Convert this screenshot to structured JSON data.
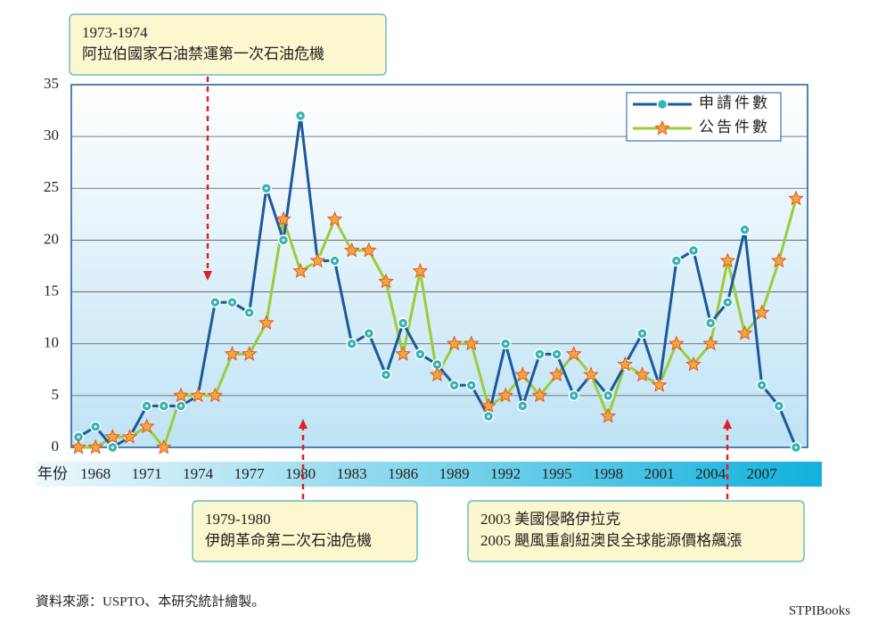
{
  "chart_data": {
    "type": "line",
    "x_axis_label": "年份",
    "categories": [
      null,
      "1968",
      null,
      null,
      "1971",
      null,
      null,
      "1974",
      null,
      null,
      "1977",
      null,
      null,
      "1980",
      null,
      null,
      "1983",
      null,
      null,
      "1986",
      null,
      null,
      "1989",
      null,
      null,
      "1992",
      null,
      null,
      "1995",
      null,
      null,
      "1998",
      null,
      null,
      "2001",
      null,
      null,
      "2004",
      null,
      null,
      "2007",
      null,
      null
    ],
    "series": [
      {
        "name": "申請件數",
        "color": "#1a5a9c",
        "marker": "circle",
        "values": [
          1,
          2,
          0,
          1,
          4,
          4,
          4,
          5,
          14,
          14,
          13,
          25,
          20,
          32,
          18,
          18,
          10,
          11,
          7,
          12,
          9,
          8,
          6,
          6,
          3,
          10,
          4,
          9,
          9,
          5,
          7,
          5,
          8,
          11,
          6,
          18,
          19,
          12,
          14,
          21,
          6,
          4,
          0
        ]
      },
      {
        "name": "公告件數",
        "color": "#9ccb3c",
        "marker": "star",
        "values": [
          0,
          0,
          1,
          1,
          2,
          0,
          5,
          5,
          5,
          9,
          9,
          12,
          22,
          17,
          18,
          22,
          19,
          19,
          16,
          9,
          17,
          7,
          10,
          10,
          4,
          5,
          7,
          5,
          7,
          9,
          7,
          3,
          8,
          7,
          6,
          10,
          8,
          10,
          18,
          11,
          13,
          18,
          24
        ]
      }
    ],
    "ylim": [
      0,
      35
    ],
    "yticks": [
      0,
      5,
      10,
      15,
      20,
      25,
      30,
      35
    ],
    "grid": true,
    "legend": "upper right",
    "annotations": [
      {
        "lines": [
          "1973-1974",
          "阿拉伯國家石油禁運第一次石油危機"
        ]
      },
      {
        "lines": [
          "1979-1980",
          "伊朗革命第二次石油危機"
        ]
      },
      {
        "lines": [
          "2003 美國侵略伊拉克",
          "2005 颶風重創紐澳良全球能源價格飆漲"
        ]
      }
    ]
  },
  "source": "資料來源：USPTO、本研究統計繪製。",
  "watermark": "STPIBooks"
}
